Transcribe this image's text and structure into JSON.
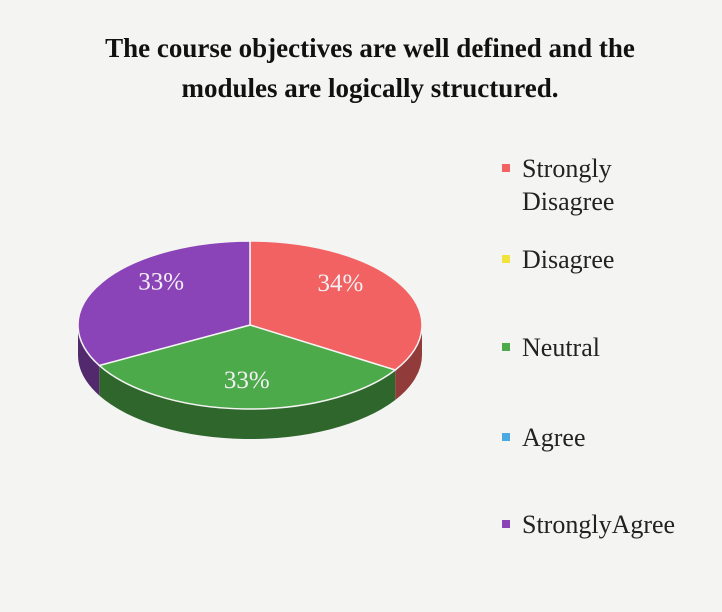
{
  "chart_data": {
    "type": "pie",
    "title": "The course objectives are well defined and the modules are logically structured.",
    "categories": [
      "Strongly Disagree",
      "Disagree",
      "Neutral",
      "Agree",
      "StronglyAgree"
    ],
    "values": [
      34,
      0,
      33,
      0,
      33
    ],
    "value_labels": [
      "34%",
      null,
      "33%",
      null,
      "33%"
    ],
    "colors": [
      "#f26262",
      "#f2e23c",
      "#4caa4a",
      "#4ba9e2",
      "#8a44b8"
    ],
    "legend": "right"
  }
}
